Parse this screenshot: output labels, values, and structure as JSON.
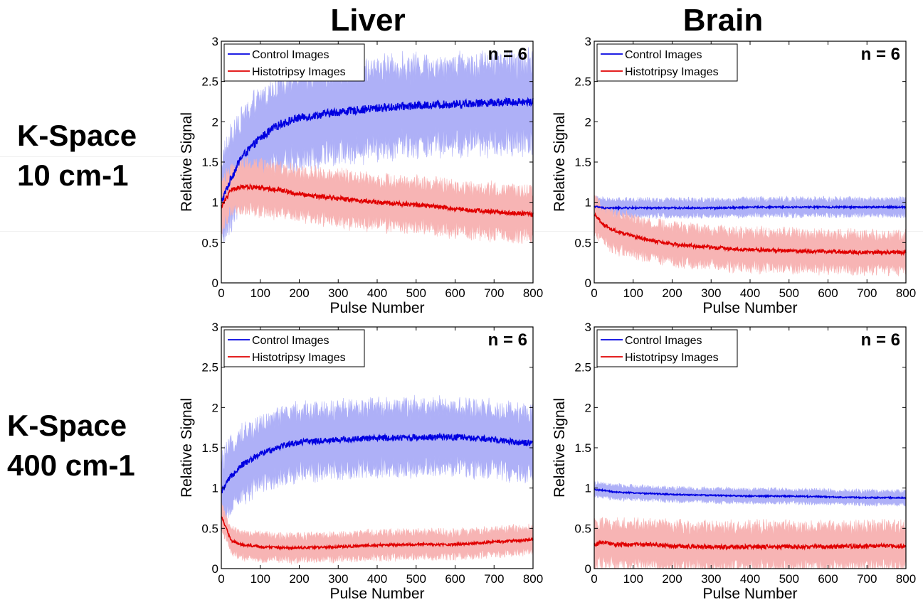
{
  "column_titles": [
    "Liver",
    "Brain"
  ],
  "row_titles": [
    {
      "line1": "K-Space",
      "line2": "10 cm-1"
    },
    {
      "line1": "K-Space",
      "line2": "400 cm-1"
    }
  ],
  "colors": {
    "control_line": "#0000e0",
    "control_band": "#aeb0f7",
    "histotripsy_line": "#e00000",
    "histotripsy_band": "#f7b4b4"
  },
  "chart_data": [
    {
      "type": "line",
      "panel": "liver-10",
      "n_label": "n = 6",
      "xlabel": "Pulse Number",
      "ylabel": "Relative Signal",
      "xlim": [
        0,
        800
      ],
      "ylim": [
        0,
        3
      ],
      "xticks": [
        "0",
        "100",
        "200",
        "300",
        "400",
        "500",
        "600",
        "700",
        "800"
      ],
      "yticks": [
        "0",
        "0.5",
        "1",
        "1.5",
        "2",
        "2.5",
        "3"
      ],
      "legend": {
        "placement": "top-left"
      },
      "x": [
        0,
        25,
        50,
        100,
        150,
        200,
        300,
        400,
        500,
        600,
        700,
        800
      ],
      "series": [
        {
          "name": "Control Images",
          "values": [
            1.0,
            1.3,
            1.55,
            1.8,
            1.97,
            2.05,
            2.12,
            2.17,
            2.2,
            2.22,
            2.24,
            2.25
          ],
          "spread": 0.5
        },
        {
          "name": "Histotripsy Images",
          "values": [
            0.95,
            1.15,
            1.2,
            1.18,
            1.15,
            1.1,
            1.05,
            1.0,
            0.97,
            0.92,
            0.88,
            0.85
          ],
          "spread": 0.28
        }
      ]
    },
    {
      "type": "line",
      "panel": "brain-10",
      "n_label": "n = 6",
      "xlabel": "Pulse Number",
      "ylabel": "Relative Signal",
      "xlim": [
        0,
        800
      ],
      "ylim": [
        0,
        3
      ],
      "xticks": [
        "0",
        "100",
        "200",
        "300",
        "400",
        "500",
        "600",
        "700",
        "800"
      ],
      "yticks": [
        "0",
        "0.5",
        "1",
        "1.5",
        "2",
        "2.5",
        "3"
      ],
      "legend": {
        "placement": "top-left"
      },
      "x": [
        0,
        25,
        50,
        100,
        150,
        200,
        300,
        400,
        500,
        600,
        700,
        800
      ],
      "series": [
        {
          "name": "Control Images",
          "values": [
            0.95,
            0.93,
            0.93,
            0.93,
            0.93,
            0.93,
            0.93,
            0.94,
            0.94,
            0.94,
            0.94,
            0.94
          ],
          "spread": 0.1
        },
        {
          "name": "Histotripsy Images",
          "values": [
            0.85,
            0.72,
            0.65,
            0.58,
            0.52,
            0.48,
            0.44,
            0.41,
            0.4,
            0.39,
            0.38,
            0.38
          ],
          "spread": 0.22
        }
      ]
    },
    {
      "type": "line",
      "panel": "liver-400",
      "n_label": "n = 6",
      "xlabel": "Pulse Number",
      "ylabel": "Relative Signal",
      "xlim": [
        0,
        800
      ],
      "ylim": [
        0,
        3
      ],
      "xticks": [
        "0",
        "100",
        "200",
        "300",
        "400",
        "500",
        "600",
        "700",
        "800"
      ],
      "yticks": [
        "0",
        "0.5",
        "1",
        "1.5",
        "2",
        "2.5",
        "3"
      ],
      "legend": {
        "placement": "top-left"
      },
      "x": [
        0,
        25,
        50,
        100,
        150,
        200,
        300,
        400,
        500,
        600,
        700,
        800
      ],
      "series": [
        {
          "name": "Control Images",
          "values": [
            0.95,
            1.15,
            1.28,
            1.42,
            1.52,
            1.57,
            1.6,
            1.62,
            1.63,
            1.63,
            1.6,
            1.55
          ],
          "spread": 0.38
        },
        {
          "name": "Histotripsy Images",
          "values": [
            0.65,
            0.35,
            0.3,
            0.27,
            0.26,
            0.26,
            0.27,
            0.29,
            0.3,
            0.3,
            0.33,
            0.36
          ],
          "spread": 0.15
        }
      ]
    },
    {
      "type": "line",
      "panel": "brain-400",
      "n_label": "n = 6",
      "xlabel": "Pulse Number",
      "ylabel": "Relative Signal",
      "xlim": [
        0,
        800
      ],
      "ylim": [
        0,
        3
      ],
      "xticks": [
        "0",
        "100",
        "200",
        "300",
        "400",
        "500",
        "600",
        "700",
        "800"
      ],
      "yticks": [
        "0",
        "0.5",
        "1",
        "1.5",
        "2",
        "2.5",
        "3"
      ],
      "legend": {
        "placement": "top-left"
      },
      "x": [
        0,
        25,
        50,
        100,
        150,
        200,
        300,
        400,
        500,
        600,
        700,
        800
      ],
      "series": [
        {
          "name": "Control Images",
          "values": [
            0.98,
            0.97,
            0.95,
            0.94,
            0.93,
            0.92,
            0.91,
            0.9,
            0.9,
            0.89,
            0.88,
            0.88
          ],
          "spread": 0.08
        },
        {
          "name": "Histotripsy Images",
          "values": [
            0.3,
            0.32,
            0.3,
            0.3,
            0.3,
            0.28,
            0.27,
            0.27,
            0.27,
            0.27,
            0.28,
            0.28
          ],
          "spread": 0.25
        }
      ]
    }
  ]
}
